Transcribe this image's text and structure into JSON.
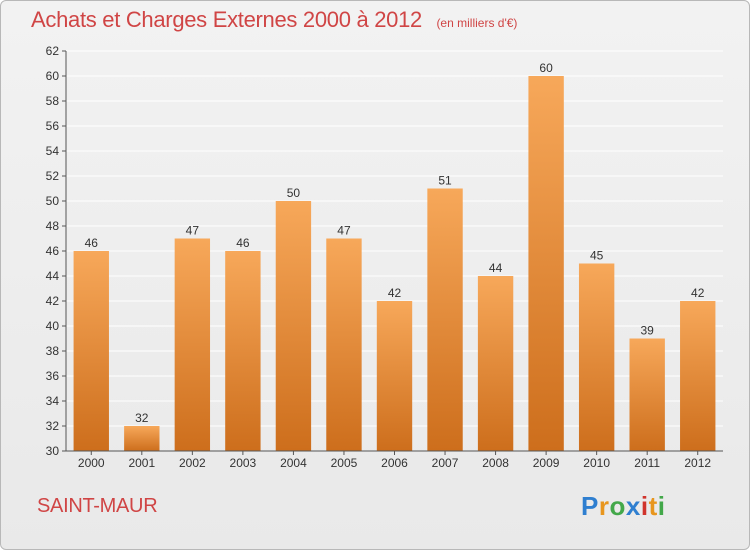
{
  "header": {
    "title": "Achats et Charges Externes 2000 à 2012",
    "subtitle": "(en milliers d'€)"
  },
  "footer": {
    "city": "SAINT-MAUR",
    "logo_text": "Proxiti",
    "logo_colors": [
      "#2f7fd0",
      "#e8961e",
      "#43a84a",
      "#2f7fd0",
      "#d0342c",
      "#e8961e",
      "#43a84a"
    ]
  },
  "colors": {
    "bar_top": "#f7a85a",
    "bar_bottom": "#cd6e1c",
    "title": "#d04545",
    "grid": "#ffffff",
    "axis": "#555555"
  },
  "chart_data": {
    "type": "bar",
    "title": "Achats et Charges Externes 2000 à 2012",
    "subtitle": "(en milliers d'€)",
    "categories": [
      "2000",
      "2001",
      "2002",
      "2003",
      "2004",
      "2005",
      "2006",
      "2007",
      "2008",
      "2009",
      "2010",
      "2011",
      "2012"
    ],
    "values": [
      46,
      32,
      47,
      46,
      50,
      47,
      42,
      51,
      44,
      60,
      45,
      39,
      42
    ],
    "ylim": [
      30,
      62
    ],
    "ytick_step": 2,
    "grid": true,
    "xlabel": "",
    "ylabel": ""
  }
}
